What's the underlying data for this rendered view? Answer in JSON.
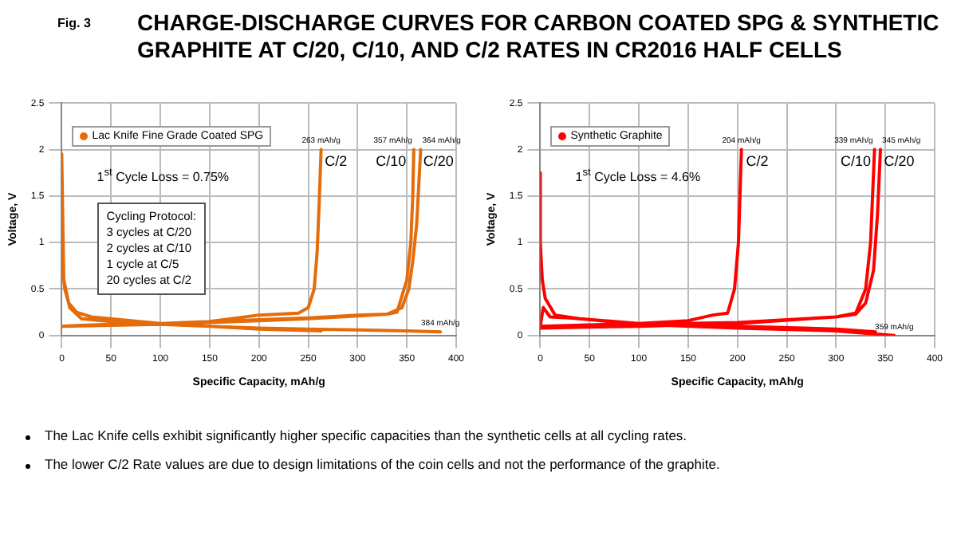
{
  "chart_data": [
    {
      "type": "line",
      "title": "CHARGE-DISCHARGE CURVES FOR CARBON COATED SPG & SYNTHETIC GRAPHITE AT C/20, C/10, AND C/2 RATES IN CR2016 HALF CELLS",
      "xlabel": "Specific Capacity, mAh/g",
      "ylabel": "Voltage, V",
      "xlim": [
        0,
        400
      ],
      "xticks": [
        0,
        50,
        100,
        150,
        200,
        250,
        300,
        350,
        400
      ],
      "ylim": [
        0,
        2.5
      ],
      "yticks": [
        0,
        0.5,
        1,
        1.5,
        2,
        2.5
      ],
      "grid": true,
      "legend": "top left",
      "line_style": "solid",
      "series": [
        {
          "name": "Lac Knife Fine Grade Coated SPG",
          "color": "#e46c0a",
          "x": [
            0,
            0,
            1,
            3,
            7,
            15,
            30,
            60,
            100,
            150,
            200,
            250,
            300,
            350,
            384,
            null,
            0,
            20,
            50,
            100,
            150,
            200,
            250,
            300,
            330,
            345,
            352,
            356,
            360,
            362,
            364,
            null,
            0,
            50,
            100,
            150,
            200,
            250,
            300,
            330,
            340,
            350,
            354,
            356,
            357,
            null,
            0,
            50,
            100,
            150,
            200,
            240,
            250,
            256,
            259,
            261,
            263,
            null,
            0,
            2,
            8,
            20,
            50,
            100,
            150,
            200,
            263
          ],
          "values": [
            1.95,
            1.2,
            0.7,
            0.5,
            0.35,
            0.25,
            0.2,
            0.17,
            0.13,
            0.1,
            0.08,
            0.07,
            0.06,
            0.05,
            0.04,
            null,
            0.1,
            0.11,
            0.12,
            0.13,
            0.15,
            0.17,
            0.19,
            0.22,
            0.23,
            0.3,
            0.5,
            0.8,
            1.2,
            1.6,
            2,
            null,
            0.1,
            0.11,
            0.12,
            0.14,
            0.16,
            0.18,
            0.21,
            0.23,
            0.25,
            0.6,
            1,
            1.5,
            2,
            null,
            0.1,
            0.12,
            0.13,
            0.15,
            0.22,
            0.24,
            0.3,
            0.5,
            0.9,
            1.4,
            2,
            null,
            1.9,
            0.6,
            0.3,
            0.18,
            0.15,
            0.12,
            0.1,
            0.07,
            0.05
          ]
        }
      ],
      "annotations": [
        "Fig. 3",
        "The Lac Knife cells exhibit significantly higher specific capacities than the synthetic cells at all cycling rates.",
        "The lower C/2 Rate values are due to design limitations of the coin cells and not the performance of the graphite.",
        "1$^{st}$ Cycle Loss = 0.75%",
        "Cycling Protocol:\n3 cycles at C/20\n2 cycles at C/10\n1 cycle at C/5\n20 cycles at C/2",
        {
          "text": "263 mAh/g",
          "x": 263,
          "y": 2
        },
        {
          "text": "357 mAh/g",
          "x": 357,
          "y": 2
        },
        {
          "text": "364 mAh/g",
          "x": 364,
          "y": 2
        },
        {
          "text": "384 mAh/g",
          "x": 384,
          "y": 0.04
        },
        "C/2",
        "C/10",
        "C/20"
      ]
    },
    {
      "type": "line",
      "xlabel": "Specific Capacity, mAh/g",
      "ylabel": "Voltage, V",
      "xlim": [
        0,
        400
      ],
      "xticks": [
        0,
        50,
        100,
        150,
        200,
        250,
        300,
        350,
        400
      ],
      "ylim": [
        0,
        2.5
      ],
      "yticks": [
        0,
        0.5,
        1,
        1.5,
        2,
        2.5
      ],
      "grid": true,
      "legend": "top left",
      "line_style": "solid",
      "series": [
        {
          "name": "Synthetic Graphite",
          "color": "#ff0000",
          "x": [
            0,
            0,
            2,
            5,
            15,
            40,
            100,
            200,
            300,
            359,
            null,
            0,
            100,
            200,
            300,
            320,
            330,
            338,
            342,
            345,
            null,
            0,
            100,
            200,
            300,
            320,
            330,
            335,
            339,
            null,
            0,
            100,
            150,
            175,
            190,
            197,
            201,
            204,
            null,
            0,
            3,
            10,
            30,
            100,
            200,
            300,
            340
          ],
          "values": [
            1.75,
            1,
            0.6,
            0.4,
            0.22,
            0.18,
            0.12,
            0.08,
            0.05,
            0,
            null,
            0.08,
            0.1,
            0.13,
            0.2,
            0.23,
            0.35,
            0.7,
            1.3,
            2,
            null,
            0.1,
            0.12,
            0.14,
            0.2,
            0.24,
            0.5,
            1,
            2,
            null,
            0.1,
            0.13,
            0.16,
            0.22,
            0.24,
            0.5,
            1,
            2,
            null,
            0.1,
            0.3,
            0.2,
            0.19,
            0.13,
            0.1,
            0.07,
            0.04
          ]
        }
      ],
      "annotations": [
        "1$^{st}$ Cycle Loss = 4.6%",
        {
          "text": "204 mAh/g",
          "x": 204,
          "y": 2
        },
        {
          "text": "339 mAh/g",
          "x": 339,
          "y": 2
        },
        {
          "text": "345 mAh/g",
          "x": 345,
          "y": 2
        },
        {
          "text": "359 mAh/g",
          "x": 359,
          "y": 0
        },
        "C/2",
        "C/10",
        "C/20"
      ]
    }
  ]
}
